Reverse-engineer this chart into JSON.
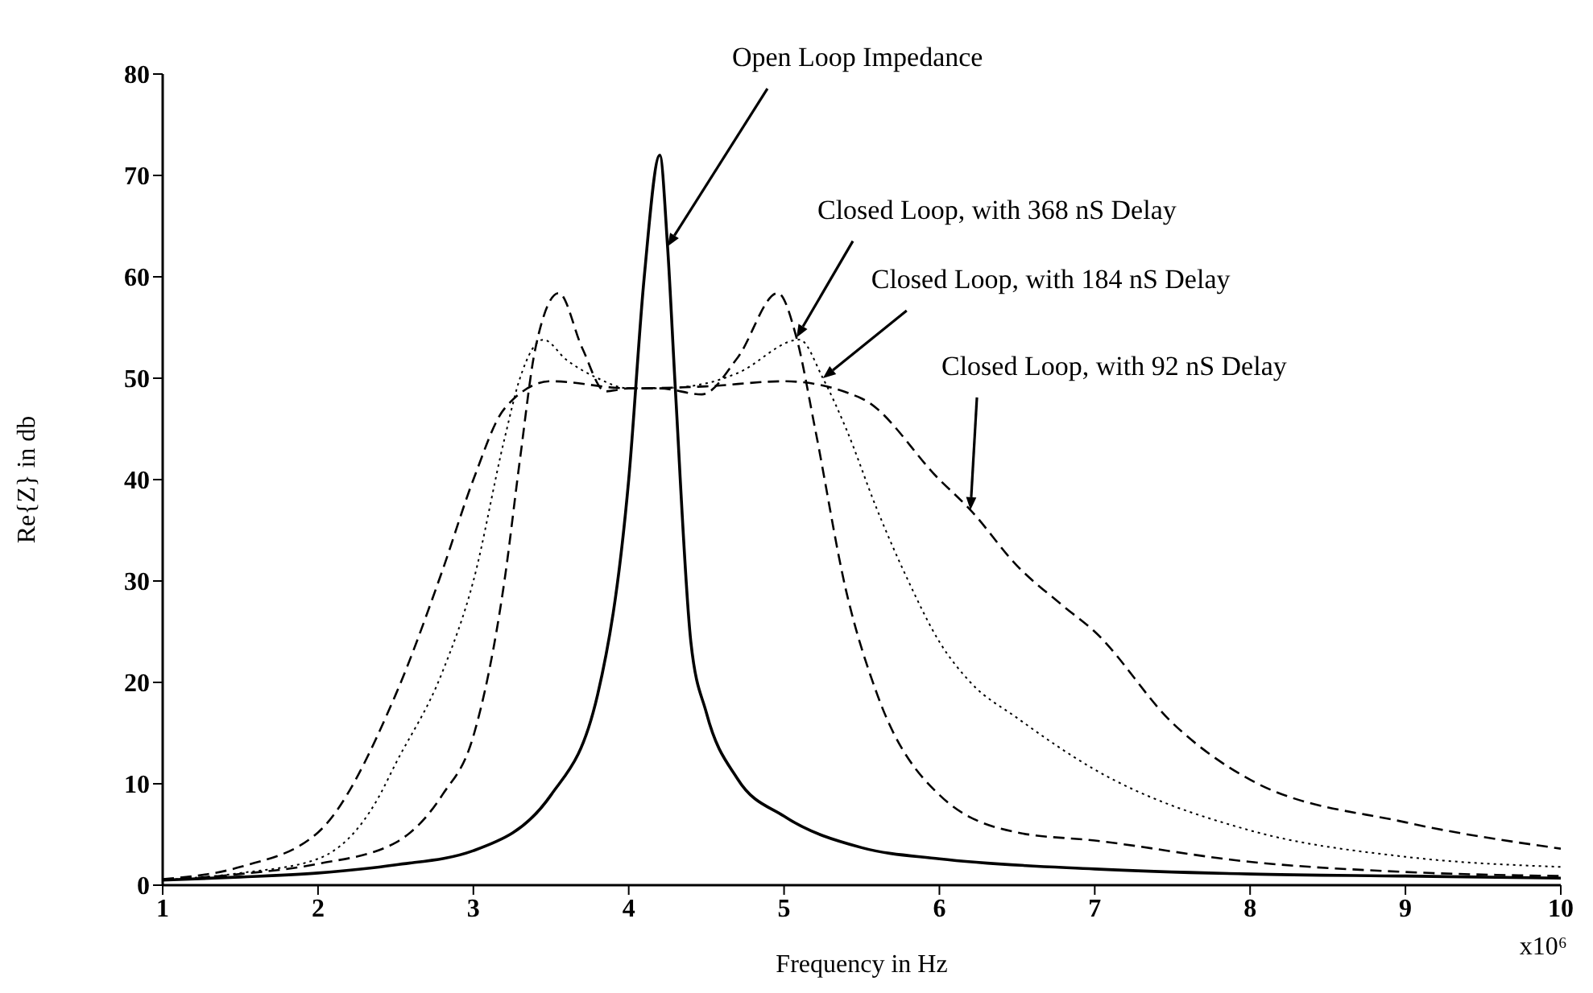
{
  "chart_data": {
    "type": "line",
    "xlabel": "Frequency in Hz",
    "ylabel": "Re{Z} in db",
    "xlim": [
      1,
      10
    ],
    "ylim": [
      0,
      80
    ],
    "xticks": [
      1,
      2,
      3,
      4,
      5,
      6,
      7,
      8,
      9,
      10
    ],
    "yticks": [
      0,
      10,
      20,
      30,
      40,
      50,
      60,
      70,
      80
    ],
    "grid": false,
    "marker": "none",
    "series": [
      {
        "name": "Open Loop Impedance",
        "color": "#000000",
        "line_style": "solid",
        "x": [
          1,
          1.5,
          2,
          2.5,
          3,
          3.5,
          3.8,
          4,
          4.1,
          4.2,
          4.25,
          4.3,
          4.4,
          4.5,
          4.7,
          5,
          5.5,
          6,
          7,
          8,
          9,
          10
        ],
        "values": [
          0.5,
          0.8,
          1.2,
          2,
          3.4,
          8.9,
          18.8,
          40,
          60,
          72,
          63,
          49,
          24,
          17,
          10.5,
          6.8,
          3.7,
          2.6,
          1.6,
          1.1,
          0.9,
          0.7
        ]
      },
      {
        "name": "Closed Loop, with 368 nS Delay",
        "color": "#000000",
        "line_style": "dashed",
        "x": [
          1,
          1.5,
          2,
          2.5,
          2.8,
          3,
          3.2,
          3.3,
          3.4,
          3.55,
          3.7,
          3.85,
          4,
          4.2,
          4.47,
          4.7,
          4.96,
          5.08,
          5.2,
          5.4,
          5.6,
          6,
          6.5,
          7,
          8,
          9,
          10
        ],
        "values": [
          0.5,
          1.1,
          2.1,
          4.2,
          8.9,
          14.7,
          30,
          42,
          53,
          58.4,
          53,
          48.7,
          49,
          49,
          48.4,
          52,
          58.4,
          54,
          45,
          29,
          18.8,
          8.9,
          5.2,
          4.4,
          2.3,
          1.3,
          0.9
        ]
      },
      {
        "name": "Closed Loop, with 184 nS Delay",
        "color": "#000000",
        "line_style": "dotted",
        "x": [
          1,
          1.5,
          2,
          2.38,
          2.5,
          2.8,
          3,
          3.2,
          3.3,
          3.45,
          3.6,
          3.8,
          4,
          4.2,
          4.5,
          4.7,
          5.1,
          5.25,
          5.4,
          5.6,
          5.8,
          6,
          6.2,
          6.5,
          7,
          8,
          9,
          10
        ],
        "values": [
          0.5,
          1.2,
          2.6,
          8.4,
          12,
          21,
          30,
          44,
          50,
          53.8,
          51.8,
          50,
          49,
          49,
          49.5,
          50.5,
          53.8,
          50,
          45,
          37,
          30,
          24,
          20,
          16.5,
          11.4,
          5.4,
          2.8,
          1.8
        ]
      },
      {
        "name": "Closed Loop, with 92 nS Delay",
        "color": "#000000",
        "line_style": "dashed",
        "x": [
          1,
          1.5,
          2,
          2.5,
          2.8,
          3,
          3.2,
          3.5,
          4,
          4.5,
          5,
          5.5,
          6,
          6.2,
          6.5,
          6.8,
          7,
          7.5,
          8,
          9,
          10
        ],
        "values": [
          0.6,
          1.8,
          5.2,
          18.8,
          31,
          40,
          47,
          49.7,
          49,
          49.2,
          49.7,
          48,
          40,
          37,
          31.5,
          27.5,
          25,
          16,
          10.4,
          6.2,
          3.6
        ]
      }
    ],
    "annotations": [
      "x10⁶"
    ]
  }
}
